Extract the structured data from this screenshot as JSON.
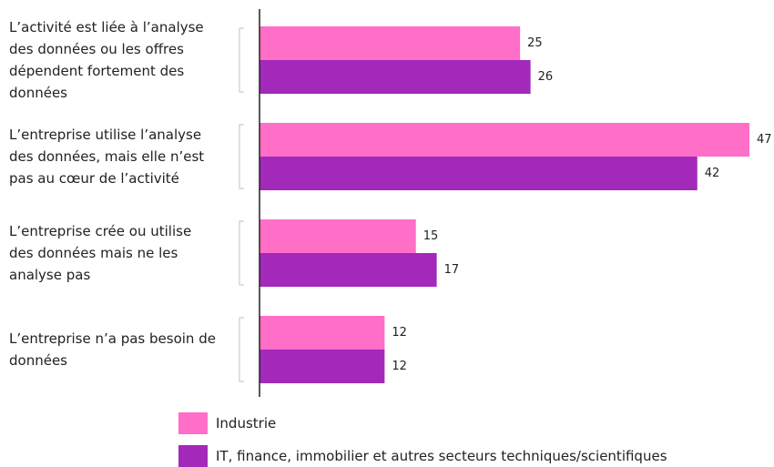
{
  "chart_data": {
    "type": "bar",
    "orientation": "horizontal",
    "categories": [
      "L’activité est liée à l’analyse des données ou les offres dépendent fortement des données",
      "L’entreprise utilise l’analyse des données, mais elle n’est pas au cœur de l’activité",
      "L’entreprise crée ou utilise des données mais ne les analyse pas",
      "L’entreprise n’a pas besoin de données"
    ],
    "series": [
      {
        "name": "Industrie",
        "color": "#ff6ec7",
        "values": [
          25,
          47,
          15,
          12
        ]
      },
      {
        "name": "IT, finance, immobilier et autres secteurs techniques/scientifiques",
        "color": "#a229b9",
        "values": [
          26,
          42,
          17,
          12
        ]
      }
    ]
  }
}
